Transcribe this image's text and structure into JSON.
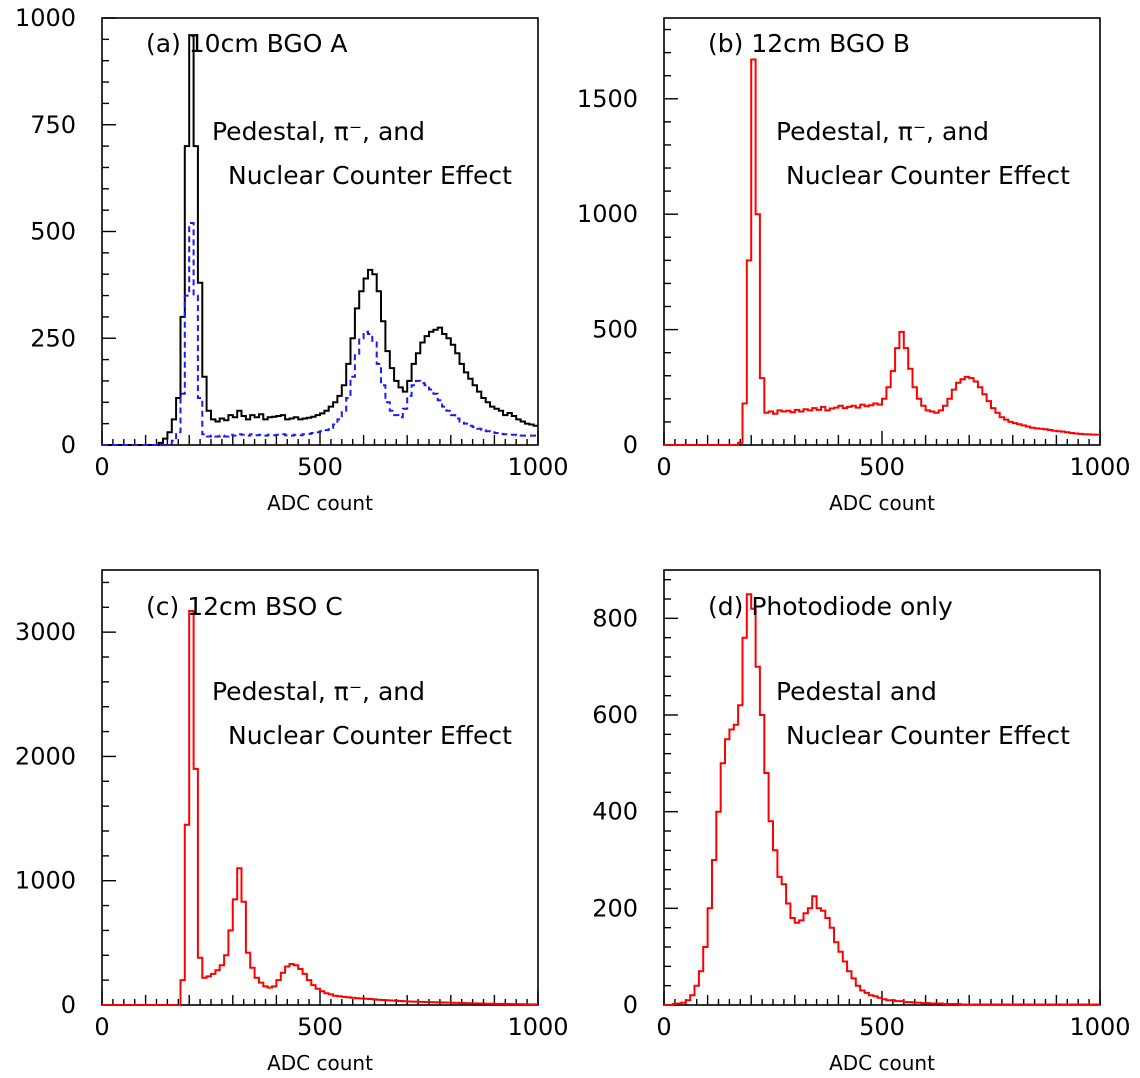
{
  "chart_data": [
    {
      "type": "line",
      "panel_label": "(a) 10cm BGO A",
      "annotations": [
        "Pedestal, π⁻, and",
        "Nuclear Counter Effect"
      ],
      "xlabel": "ADC count",
      "ylabel": "",
      "xlim": [
        0,
        1000
      ],
      "ylim": [
        0,
        1000
      ],
      "xticks": [
        0,
        500,
        1000
      ],
      "yticks": [
        0,
        250,
        500,
        750,
        1000
      ],
      "grid": false,
      "series": [
        {
          "style": "solid",
          "color": "#000000",
          "x": [
            0,
            10,
            20,
            30,
            40,
            50,
            60,
            70,
            80,
            90,
            100,
            110,
            120,
            130,
            140,
            150,
            160,
            170,
            180,
            190,
            200,
            210,
            220,
            230,
            240,
            250,
            260,
            270,
            280,
            290,
            300,
            310,
            320,
            330,
            340,
            350,
            360,
            370,
            380,
            390,
            400,
            410,
            420,
            430,
            440,
            450,
            460,
            470,
            480,
            490,
            500,
            510,
            520,
            530,
            540,
            550,
            560,
            570,
            580,
            590,
            600,
            610,
            620,
            630,
            640,
            650,
            660,
            670,
            680,
            690,
            700,
            710,
            720,
            730,
            740,
            750,
            760,
            770,
            780,
            790,
            800,
            810,
            820,
            830,
            840,
            850,
            860,
            870,
            880,
            890,
            900,
            910,
            920,
            930,
            940,
            950,
            960,
            970,
            980,
            990
          ],
          "values": [
            0,
            0,
            0,
            0,
            0,
            0,
            0,
            0,
            0,
            0,
            0,
            0,
            0,
            5,
            15,
            30,
            60,
            110,
            300,
            700,
            960,
            700,
            380,
            160,
            80,
            60,
            55,
            62,
            58,
            70,
            65,
            80,
            68,
            60,
            70,
            65,
            72,
            60,
            65,
            66,
            68,
            70,
            60,
            62,
            65,
            60,
            62,
            64,
            66,
            70,
            74,
            80,
            90,
            100,
            115,
            140,
            190,
            250,
            320,
            360,
            390,
            410,
            400,
            360,
            290,
            220,
            180,
            150,
            135,
            125,
            150,
            190,
            215,
            240,
            255,
            265,
            270,
            275,
            260,
            250,
            235,
            215,
            190,
            170,
            155,
            140,
            125,
            110,
            100,
            90,
            85,
            80,
            70,
            75,
            68,
            60,
            55,
            50,
            48,
            45
          ]
        },
        {
          "style": "dashed",
          "color": "#1a1aff",
          "x": [
            0,
            10,
            20,
            30,
            40,
            50,
            60,
            70,
            80,
            90,
            100,
            110,
            120,
            130,
            140,
            150,
            160,
            170,
            180,
            190,
            200,
            210,
            220,
            230,
            240,
            250,
            260,
            270,
            280,
            290,
            300,
            310,
            320,
            330,
            340,
            350,
            360,
            370,
            380,
            390,
            400,
            410,
            420,
            430,
            440,
            450,
            460,
            470,
            480,
            490,
            500,
            510,
            520,
            530,
            540,
            550,
            560,
            570,
            580,
            590,
            600,
            610,
            620,
            630,
            640,
            650,
            660,
            670,
            680,
            690,
            700,
            710,
            720,
            730,
            740,
            750,
            760,
            770,
            780,
            790,
            800,
            810,
            820,
            830,
            840,
            850,
            860,
            870,
            880,
            890,
            900,
            910,
            920,
            930,
            940,
            950,
            960,
            970,
            980,
            990
          ],
          "values": [
            0,
            0,
            0,
            0,
            0,
            0,
            0,
            0,
            0,
            0,
            0,
            0,
            0,
            0,
            0,
            0,
            10,
            30,
            120,
            350,
            520,
            350,
            110,
            25,
            20,
            22,
            20,
            22,
            20,
            24,
            22,
            25,
            24,
            22,
            25,
            23,
            24,
            22,
            24,
            23,
            24,
            25,
            23,
            22,
            24,
            23,
            25,
            26,
            28,
            30,
            32,
            35,
            40,
            48,
            60,
            80,
            110,
            160,
            210,
            250,
            265,
            260,
            240,
            190,
            140,
            100,
            80,
            70,
            65,
            85,
            115,
            140,
            150,
            145,
            140,
            130,
            120,
            105,
            90,
            80,
            70,
            62,
            55,
            50,
            45,
            42,
            38,
            35,
            32,
            30,
            28,
            26,
            25,
            24,
            24,
            23,
            22,
            22,
            22,
            22
          ]
        }
      ]
    },
    {
      "type": "line",
      "panel_label": "(b) 12cm BGO B",
      "annotations": [
        "Pedestal, π⁻, and",
        "Nuclear Counter Effect"
      ],
      "xlabel": "ADC count",
      "ylabel": "",
      "xlim": [
        0,
        1000
      ],
      "ylim": [
        0,
        1850
      ],
      "xticks": [
        0,
        500,
        1000
      ],
      "yticks": [
        0,
        500,
        1000,
        1500
      ],
      "grid": false,
      "series": [
        {
          "style": "solid",
          "color": "#ff0000",
          "x": [
            0,
            10,
            20,
            30,
            40,
            50,
            60,
            70,
            80,
            90,
            100,
            110,
            120,
            130,
            140,
            150,
            160,
            170,
            180,
            190,
            200,
            210,
            220,
            230,
            240,
            250,
            260,
            270,
            280,
            290,
            300,
            310,
            320,
            330,
            340,
            350,
            360,
            370,
            380,
            390,
            400,
            410,
            420,
            430,
            440,
            450,
            460,
            470,
            480,
            490,
            500,
            510,
            520,
            530,
            540,
            550,
            560,
            570,
            580,
            590,
            600,
            610,
            620,
            630,
            640,
            650,
            660,
            670,
            680,
            690,
            700,
            710,
            720,
            730,
            740,
            750,
            760,
            770,
            780,
            790,
            800,
            810,
            820,
            830,
            840,
            850,
            860,
            870,
            880,
            890,
            900,
            910,
            920,
            930,
            940,
            950,
            960,
            970,
            980,
            990
          ],
          "values": [
            0,
            0,
            0,
            0,
            0,
            0,
            0,
            0,
            0,
            0,
            0,
            0,
            0,
            0,
            0,
            0,
            0,
            10,
            180,
            800,
            1670,
            1000,
            290,
            140,
            145,
            135,
            150,
            145,
            148,
            142,
            152,
            145,
            155,
            150,
            160,
            152,
            165,
            150,
            158,
            162,
            170,
            160,
            165,
            170,
            162,
            175,
            168,
            172,
            180,
            175,
            200,
            250,
            320,
            420,
            490,
            420,
            330,
            250,
            200,
            170,
            150,
            145,
            140,
            150,
            170,
            200,
            240,
            270,
            285,
            295,
            290,
            275,
            250,
            220,
            190,
            160,
            140,
            120,
            110,
            100,
            95,
            90,
            85,
            80,
            75,
            72,
            70,
            68,
            65,
            62,
            60,
            58,
            55,
            52,
            50,
            48,
            47,
            46,
            45,
            45
          ]
        }
      ]
    },
    {
      "type": "line",
      "panel_label": "(c) 12cm BSO C",
      "annotations": [
        "Pedestal, π⁻, and",
        "Nuclear Counter Effect"
      ],
      "xlabel": "ADC count",
      "ylabel": "",
      "xlim": [
        0,
        1000
      ],
      "ylim": [
        0,
        3500
      ],
      "xticks": [
        0,
        500,
        1000
      ],
      "yticks": [
        0,
        1000,
        2000,
        3000
      ],
      "grid": false,
      "series": [
        {
          "style": "solid",
          "color": "#ff0000",
          "x": [
            0,
            10,
            20,
            30,
            40,
            50,
            60,
            70,
            80,
            90,
            100,
            110,
            120,
            130,
            140,
            150,
            160,
            170,
            180,
            190,
            200,
            210,
            220,
            230,
            240,
            250,
            260,
            270,
            280,
            290,
            300,
            310,
            320,
            330,
            340,
            350,
            360,
            370,
            380,
            390,
            400,
            410,
            420,
            430,
            440,
            450,
            460,
            470,
            480,
            490,
            500,
            510,
            520,
            530,
            540,
            550,
            560,
            570,
            580,
            590,
            600,
            610,
            620,
            630,
            640,
            650,
            660,
            670,
            680,
            690,
            700,
            710,
            720,
            730,
            740,
            750,
            760,
            770,
            780,
            790,
            800,
            810,
            820,
            830,
            840,
            850,
            860,
            870,
            880,
            890,
            900,
            910,
            920,
            930,
            940,
            950,
            960,
            970,
            980,
            990
          ],
          "values": [
            0,
            0,
            0,
            0,
            0,
            0,
            0,
            0,
            0,
            0,
            0,
            0,
            0,
            0,
            0,
            0,
            0,
            0,
            200,
            1450,
            3170,
            1900,
            380,
            220,
            230,
            250,
            280,
            320,
            400,
            600,
            850,
            1100,
            830,
            420,
            300,
            220,
            180,
            150,
            140,
            150,
            200,
            260,
            310,
            330,
            320,
            290,
            250,
            200,
            160,
            130,
            110,
            95,
            85,
            75,
            70,
            65,
            62,
            58,
            55,
            52,
            50,
            48,
            45,
            42,
            40,
            38,
            36,
            34,
            32,
            30,
            28,
            27,
            26,
            25,
            24,
            23,
            22,
            21,
            20,
            19,
            18,
            17,
            16,
            15,
            14,
            13,
            12,
            11,
            10,
            10,
            9,
            9,
            8,
            8,
            7,
            7,
            6,
            6,
            5,
            5
          ]
        }
      ]
    },
    {
      "type": "line",
      "panel_label": "(d) Photodiode only",
      "annotations": [
        "Pedestal and",
        "Nuclear Counter Effect"
      ],
      "xlabel": "ADC count",
      "ylabel": "",
      "xlim": [
        0,
        1000
      ],
      "ylim": [
        0,
        900
      ],
      "xticks": [
        0,
        500,
        1000
      ],
      "yticks": [
        0,
        200,
        400,
        600,
        800
      ],
      "grid": false,
      "series": [
        {
          "style": "solid",
          "color": "#ff0000",
          "x": [
            0,
            10,
            20,
            30,
            40,
            50,
            60,
            70,
            80,
            90,
            100,
            110,
            120,
            130,
            140,
            150,
            160,
            170,
            180,
            190,
            200,
            210,
            220,
            230,
            240,
            250,
            260,
            270,
            280,
            290,
            300,
            310,
            320,
            330,
            340,
            350,
            360,
            370,
            380,
            390,
            400,
            410,
            420,
            430,
            440,
            450,
            460,
            470,
            480,
            490,
            500,
            510,
            520,
            530,
            540,
            550,
            560,
            570,
            580,
            590,
            600,
            610,
            620,
            630,
            640,
            650,
            660,
            670,
            680,
            690,
            700,
            710,
            720,
            730,
            740,
            750,
            760,
            770,
            780,
            790,
            800,
            810,
            820,
            830,
            840,
            850,
            860,
            870,
            880,
            890,
            900,
            910,
            920,
            930,
            940,
            950,
            960,
            970,
            980,
            990
          ],
          "values": [
            0,
            0,
            2,
            3,
            5,
            10,
            20,
            40,
            70,
            120,
            200,
            300,
            400,
            500,
            550,
            570,
            580,
            620,
            760,
            850,
            820,
            700,
            600,
            480,
            380,
            320,
            265,
            250,
            210,
            180,
            170,
            175,
            190,
            200,
            225,
            200,
            195,
            180,
            160,
            130,
            110,
            90,
            70,
            55,
            40,
            30,
            25,
            20,
            18,
            15,
            12,
            10,
            10,
            8,
            8,
            6,
            6,
            5,
            5,
            4,
            4,
            3,
            3,
            3,
            2,
            2,
            2,
            2,
            1,
            1,
            1,
            1,
            1,
            1,
            1,
            1,
            1,
            1,
            1,
            1,
            1,
            1,
            1,
            1,
            1,
            1,
            1,
            1,
            1,
            1,
            1,
            1,
            1,
            1,
            1,
            1,
            1,
            1,
            1,
            1
          ]
        }
      ]
    }
  ]
}
